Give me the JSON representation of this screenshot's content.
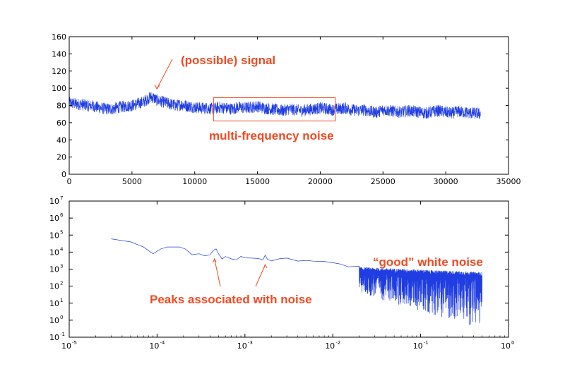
{
  "chart_data": [
    {
      "type": "line",
      "title": "",
      "xlabel": "",
      "ylabel": "",
      "xlim": [
        0,
        35000
      ],
      "ylim": [
        0,
        160
      ],
      "x_ticks": [
        0,
        5000,
        10000,
        15000,
        20000,
        25000,
        30000,
        35000
      ],
      "y_ticks": [
        0,
        20,
        40,
        60,
        80,
        100,
        120,
        140,
        160
      ],
      "grid": false,
      "series_color": "#1f3de0",
      "annotation_color": "#f04a23",
      "series": [
        {
          "x": [
            0,
            500,
            1000,
            1500,
            2000,
            2500,
            3000,
            3500,
            4000,
            4500,
            5000,
            5500,
            6000,
            6300,
            6500,
            6700,
            7000,
            7500,
            8000,
            8500,
            9000,
            9500,
            10000,
            10500,
            11000,
            11500,
            12000,
            12500,
            13000,
            13500,
            14000,
            14500,
            15000,
            15500,
            16000,
            16500,
            17000,
            17500,
            18000,
            18500,
            19000,
            19500,
            20000,
            20500,
            21000,
            21500,
            22000,
            22500,
            23000,
            23500,
            24000,
            24500,
            25000,
            25500,
            26000,
            26500,
            27000,
            27500,
            28000,
            28500,
            29000,
            29500,
            30000,
            30500,
            31000,
            31500,
            32000,
            32500,
            32768
          ],
          "y": [
            83,
            82,
            81,
            80,
            79,
            77,
            76,
            76,
            78,
            79,
            80,
            82,
            85,
            88,
            90,
            89,
            86,
            84,
            82,
            80,
            81,
            79,
            78,
            77,
            77,
            76,
            78,
            77,
            76,
            78,
            77,
            78,
            79,
            77,
            76,
            75,
            74,
            76,
            75,
            74,
            75,
            76,
            77,
            76,
            75,
            76,
            77,
            75,
            74,
            75,
            73,
            72,
            75,
            74,
            73,
            72,
            74,
            73,
            72,
            71,
            73,
            74,
            72,
            71,
            73,
            72,
            71,
            71,
            70
          ],
          "noise_band": 7
        }
      ],
      "annotations": [
        {
          "text": "(possible) signal",
          "target": [
            6700,
            97
          ]
        },
        {
          "text": "multi-frequency noise",
          "region_x": [
            11500,
            21200
          ],
          "region_y": [
            62,
            89
          ]
        }
      ]
    },
    {
      "type": "line",
      "title": "",
      "xlabel": "",
      "ylabel": "",
      "xscale": "log",
      "yscale": "log",
      "xlim": [
        1e-05,
        1
      ],
      "ylim": [
        0.1,
        10000000
      ],
      "x_tick_exponents": [
        "-5",
        "-4",
        "-3",
        "-2",
        "-1",
        "0"
      ],
      "y_tick_exponents": [
        "-1",
        "0",
        "1",
        "2",
        "3",
        "4",
        "5",
        "6",
        "7"
      ],
      "tick_base": "10",
      "grid": false,
      "series_color": "#1f3de0",
      "series": [
        {
          "x": [
            3e-05,
            5e-05,
            7e-05,
            9e-05,
            0.00011,
            0.00013,
            0.00015,
            0.00018,
            0.00021,
            0.00025,
            0.0003,
            0.00035,
            0.0004,
            0.00044,
            0.00047,
            0.0005,
            0.00055,
            0.0006,
            0.0007,
            0.0008,
            0.0009,
            0.001,
            0.0012,
            0.0014,
            0.0016,
            0.0017,
            0.0018,
            0.002,
            0.0025,
            0.003,
            0.004,
            0.005,
            0.006,
            0.008,
            0.01,
            0.012,
            0.015,
            0.02
          ],
          "y": [
            60000,
            40000,
            20000,
            8000,
            15000,
            20000,
            20000,
            20000,
            15000,
            7000,
            8000,
            6000,
            7000,
            15000,
            16000,
            8000,
            4000,
            5000,
            4500,
            4000,
            4500,
            3500,
            4000,
            4500,
            3800,
            7000,
            3500,
            4000,
            3200,
            3500,
            3200,
            3000,
            3000,
            2800,
            2500,
            2000,
            1600,
            1200
          ]
        },
        {
          "x_range": [
            0.02,
            0.5
          ],
          "y_range": [
            1,
            900
          ],
          "description_kind": "noise-floor"
        }
      ],
      "annotations": [
        {
          "text": "Peaks associated with noise",
          "targets": [
            [
              0.00045,
              4000
            ],
            [
              0.0017,
              1800
            ]
          ]
        },
        {
          "text": "“good” white noise"
        }
      ]
    }
  ]
}
